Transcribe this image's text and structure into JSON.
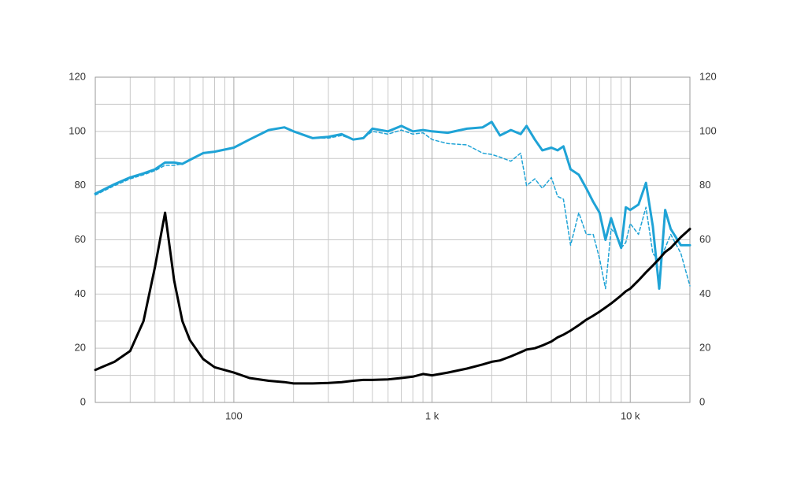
{
  "chart_data": {
    "type": "line",
    "xscale": "log",
    "grid": true,
    "x": [
      20,
      25,
      30,
      35,
      40,
      45,
      50,
      55,
      60,
      70,
      80,
      100,
      120,
      150,
      180,
      200,
      250,
      300,
      350,
      400,
      450,
      500,
      600,
      700,
      800,
      900,
      1000,
      1200,
      1500,
      1800,
      2000,
      2200,
      2500,
      2800,
      3000,
      3300,
      3600,
      4000,
      4300,
      4600,
      5000,
      5500,
      6000,
      6500,
      7000,
      7500,
      8000,
      8500,
      9000,
      9500,
      10000,
      11000,
      12000,
      13000,
      14000,
      15000,
      16000,
      18000,
      20000
    ],
    "series": [
      {
        "color": "#1fa3d6",
        "style": "solid",
        "width": 3,
        "values": [
          77,
          80.5,
          83,
          84.5,
          86,
          88.5,
          88.5,
          88,
          89.5,
          92,
          92.5,
          94,
          97,
          100.5,
          101.5,
          100,
          97.5,
          98,
          99,
          97,
          97.5,
          101,
          100,
          102,
          100,
          100.5,
          100,
          99.5,
          101,
          101.5,
          103.5,
          98.5,
          100.5,
          99,
          102,
          97,
          93,
          94,
          93,
          94.5,
          86,
          84,
          79,
          74,
          70,
          60,
          68,
          62,
          57,
          72,
          71,
          73,
          81,
          65,
          42,
          71,
          64,
          58,
          58
        ]
      },
      {
        "color": "#1fa3d6",
        "style": "dashed",
        "width": 1.5,
        "values": [
          76.5,
          80,
          82.5,
          84,
          85.5,
          87.5,
          87.5,
          88,
          89.5,
          92,
          92.5,
          94,
          97,
          100.5,
          101.5,
          100,
          97.5,
          97.5,
          98.5,
          97,
          97.5,
          100,
          99,
          100.5,
          99,
          99.5,
          97,
          95.5,
          95,
          92,
          91.5,
          90.5,
          89,
          92,
          80,
          82.5,
          79,
          83,
          76,
          75,
          58,
          70,
          62,
          62,
          53,
          42,
          64,
          62,
          57,
          59,
          66,
          62,
          72,
          55,
          52,
          57,
          62,
          55,
          43
        ]
      },
      {
        "color": "#000000",
        "style": "solid",
        "width": 3,
        "values": [
          12,
          15,
          19,
          30,
          50,
          70,
          45,
          30,
          23,
          16,
          13,
          11,
          9,
          8,
          7.5,
          7,
          7,
          7.2,
          7.5,
          8,
          8.3,
          8.3,
          8.5,
          9,
          9.5,
          10.5,
          10,
          11,
          12.5,
          14,
          15,
          15.5,
          17,
          18.5,
          19.5,
          20,
          21,
          22.5,
          24,
          25,
          26.5,
          28.5,
          30.5,
          32,
          33.5,
          35,
          36.5,
          38,
          39.5,
          41,
          42,
          45,
          48,
          50.5,
          53,
          55.5,
          57,
          61,
          64
        ]
      }
    ],
    "xlim": [
      20,
      20000
    ],
    "xticks": [
      {
        "value": 100,
        "label": "100"
      },
      {
        "value": 1000,
        "label": "1 k"
      },
      {
        "value": 10000,
        "label": "10 k"
      }
    ],
    "xminorticks": [
      30,
      40,
      50,
      60,
      70,
      80,
      90,
      200,
      300,
      400,
      500,
      600,
      700,
      800,
      900,
      2000,
      3000,
      4000,
      5000,
      6000,
      7000,
      8000,
      9000
    ],
    "ylim": [
      0,
      120
    ],
    "yticks": [
      0,
      20,
      40,
      60,
      80,
      100,
      120
    ],
    "yminorticks": [
      10,
      30,
      50,
      70,
      90,
      110
    ],
    "y2lim": [
      0,
      120
    ],
    "y2ticks": [
      0,
      20,
      40,
      60,
      80,
      100,
      120
    ]
  }
}
